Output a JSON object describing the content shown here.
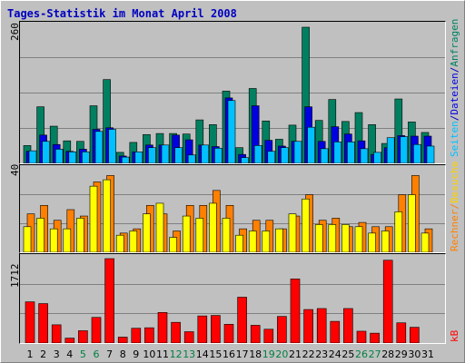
{
  "title": "Tages-Statistik im Monat April 2008",
  "colors": {
    "background": "#c0c0c0",
    "title": "#0000c0",
    "anfragen": "#008060",
    "dateien": "#0000e0",
    "seiten": "#00c0ff",
    "besuche": "#ff8000",
    "rechner": "#ffff00",
    "kb": "#ff0000",
    "weekend_day": "#008040",
    "grid": "#808080"
  },
  "panels": {
    "top_max": "260",
    "mid_max": "40",
    "bottom_max": "1712"
  },
  "legend": {
    "anfragen": "Anfragen",
    "dateien": "Dateien",
    "seiten": "Seiten",
    "besuche": "Besuche",
    "rechner": "Rechner",
    "kb": "kB",
    "sep": "/"
  },
  "chart_data": [
    {
      "type": "bar",
      "title": "Tages-Statistik im Monat April 2008",
      "x": [
        1,
        2,
        3,
        4,
        5,
        6,
        7,
        8,
        9,
        10,
        11,
        12,
        13,
        14,
        15,
        16,
        17,
        18,
        19,
        20,
        21,
        22,
        23,
        24,
        25,
        26,
        27,
        28,
        29,
        30,
        31
      ],
      "ylim": [
        0,
        260
      ],
      "series": [
        {
          "name": "Anfragen",
          "values": [
            34,
            108,
            71,
            43,
            42,
            110,
            160,
            21,
            40,
            55,
            57,
            57,
            56,
            83,
            74,
            138,
            30,
            143,
            81,
            46,
            73,
            260,
            82,
            122,
            80,
            97,
            74,
            38,
            123,
            79,
            59
          ]
        },
        {
          "name": "Dateien",
          "values": [
            23,
            54,
            36,
            23,
            27,
            65,
            68,
            14,
            22,
            35,
            35,
            54,
            45,
            35,
            32,
            125,
            17,
            110,
            44,
            33,
            42,
            108,
            42,
            70,
            56,
            43,
            17,
            30,
            53,
            52,
            52
          ]
        },
        {
          "name": "Seiten",
          "values": [
            24,
            42,
            27,
            22,
            22,
            61,
            65,
            12,
            22,
            30,
            35,
            30,
            16,
            35,
            29,
            120,
            11,
            34,
            23,
            30,
            42,
            69,
            28,
            41,
            41,
            28,
            21,
            49,
            51,
            36,
            33
          ]
        }
      ]
    },
    {
      "type": "bar",
      "x": [
        1,
        2,
        3,
        4,
        5,
        6,
        7,
        8,
        9,
        10,
        11,
        12,
        13,
        14,
        15,
        16,
        17,
        18,
        19,
        20,
        21,
        22,
        23,
        24,
        25,
        26,
        27,
        28,
        29,
        30,
        31
      ],
      "ylim": [
        0,
        40
      ],
      "series": [
        {
          "name": "Besuche",
          "values": [
            18,
            22,
            15,
            20,
            17,
            33,
            36,
            9,
            11,
            22,
            18,
            10,
            22,
            22,
            29,
            22,
            11,
            15,
            15,
            11,
            17,
            27,
            15,
            16,
            12,
            14,
            12,
            12,
            27,
            36,
            11
          ]
        },
        {
          "name": "Rechner",
          "values": [
            12,
            16,
            11,
            11,
            16,
            31,
            34,
            8,
            10,
            18,
            23,
            7,
            17,
            16,
            23,
            16,
            8,
            10,
            10,
            11,
            18,
            25,
            13,
            13,
            13,
            12,
            9,
            10,
            19,
            27,
            9
          ]
        }
      ]
    },
    {
      "type": "bar",
      "x": [
        1,
        2,
        3,
        4,
        5,
        6,
        7,
        8,
        9,
        10,
        11,
        12,
        13,
        14,
        15,
        16,
        17,
        18,
        19,
        20,
        21,
        22,
        23,
        24,
        25,
        26,
        27,
        28,
        29,
        30,
        31
      ],
      "ylim": [
        0,
        1712
      ],
      "series": [
        {
          "name": "kB",
          "values": [
            836,
            800,
            370,
            100,
            250,
            520,
            1712,
            120,
            300,
            310,
            620,
            420,
            230,
            550,
            560,
            380,
            930,
            360,
            280,
            540,
            1300,
            680,
            700,
            440,
            700,
            240,
            200,
            1680,
            410,
            320,
            0
          ]
        }
      ]
    }
  ],
  "weekend_days": [
    5,
    6,
    12,
    13,
    19,
    20,
    26,
    27
  ]
}
